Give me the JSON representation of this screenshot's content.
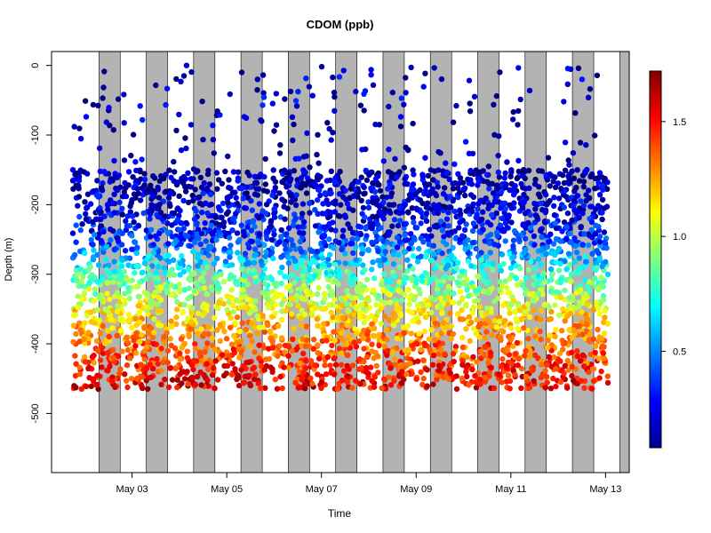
{
  "chart_data": {
    "type": "scatter",
    "title": "CDOM (ppb)",
    "xlabel": "Time",
    "ylabel": "Depth (m)",
    "x_ticks": [
      "May 03",
      "May 05",
      "May 07",
      "May 09",
      "May 11",
      "May 13"
    ],
    "x_tick_days": [
      3,
      5,
      7,
      9,
      11,
      13
    ],
    "xlim_days": [
      1.3,
      13.5
    ],
    "y_ticks": [
      0,
      -100,
      -200,
      -300,
      -400,
      -500
    ],
    "ylim": [
      -585,
      20
    ],
    "night_shading_days": [
      [
        2.3,
        2.75
      ],
      [
        3.3,
        3.75
      ],
      [
        4.3,
        4.75
      ],
      [
        5.3,
        5.75
      ],
      [
        6.3,
        6.75
      ],
      [
        7.3,
        7.75
      ],
      [
        8.3,
        8.75
      ],
      [
        9.3,
        9.75
      ],
      [
        10.3,
        10.75
      ],
      [
        11.3,
        11.75
      ],
      [
        12.3,
        12.75
      ],
      [
        13.3,
        13.75
      ]
    ],
    "night_shading_color": "#b3b3b3",
    "colorbar": {
      "ticks": [
        0.5,
        1.0,
        1.5
      ],
      "tick_labels": [
        "0.5",
        "1.0",
        "1.5"
      ],
      "range": [
        0.08,
        1.72
      ],
      "colormap": "jet"
    },
    "depth_profile_cdom": [
      {
        "depth": 0,
        "cdom": 0.2
      },
      {
        "depth": -150,
        "cdom": 0.15
      },
      {
        "depth": -200,
        "cdom": 0.2
      },
      {
        "depth": -250,
        "cdom": 0.35
      },
      {
        "depth": -300,
        "cdom": 0.8
      },
      {
        "depth": -350,
        "cdom": 1.1
      },
      {
        "depth": -400,
        "cdom": 1.35
      },
      {
        "depth": -450,
        "cdom": 1.5
      },
      {
        "depth": -465,
        "cdom": 1.55
      }
    ],
    "data_depth_range": [
      -465,
      0
    ],
    "data_time_range_days": [
      1.75,
      13.05
    ]
  }
}
